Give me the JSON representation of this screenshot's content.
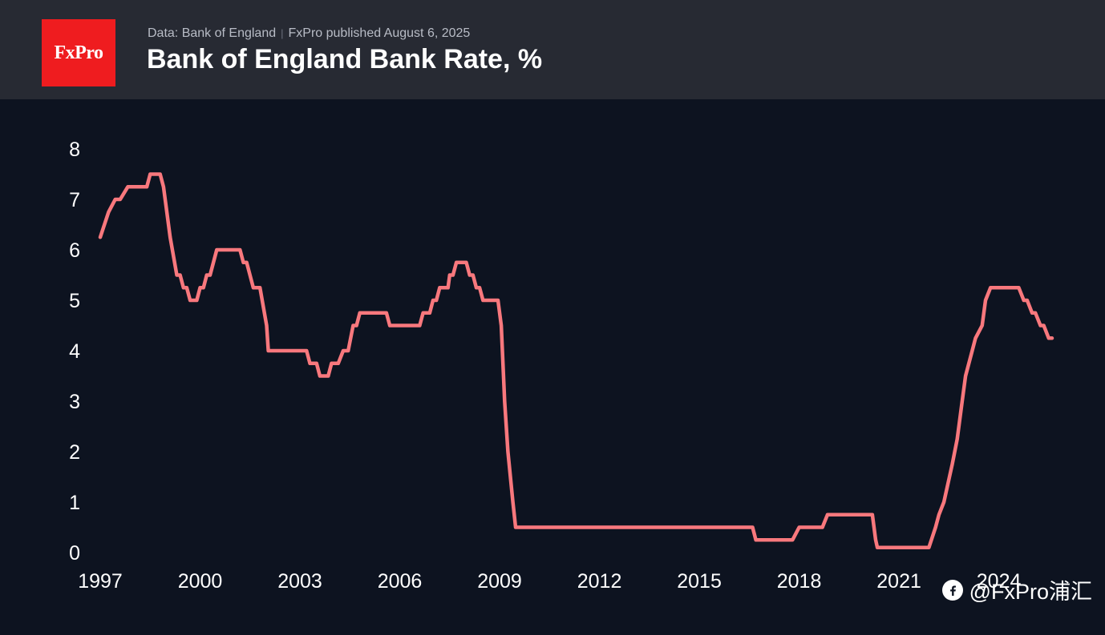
{
  "header": {
    "logo_text": "FxPro",
    "source": "Data: Bank of England",
    "separator": "|",
    "published": "FxPro published August 6, 2025",
    "title": "Bank of England Bank Rate, %"
  },
  "watermark": {
    "text": "@FxPro浦汇"
  },
  "colors": {
    "header_bg": "#272a33",
    "chart_bg": "#0d1320",
    "line": "#f8787d",
    "logo_bg": "#ef1c1f",
    "text": "#ffffff"
  },
  "chart_data": {
    "type": "line",
    "title": "Bank of England Bank Rate, %",
    "xlabel": "",
    "ylabel": "",
    "xlim": [
      1997,
      2025.6
    ],
    "ylim": [
      0,
      8
    ],
    "grid": false,
    "x_ticks": [
      "1997",
      "2000",
      "2003",
      "2006",
      "2009",
      "2012",
      "2015",
      "2018",
      "2021",
      "2024"
    ],
    "y_ticks": [
      "0",
      "1",
      "2",
      "3",
      "4",
      "5",
      "6",
      "7",
      "8"
    ],
    "series": [
      {
        "points": [
          [
            1997.0,
            6.25
          ],
          [
            1997.25,
            6.75
          ],
          [
            1997.45,
            7.0
          ],
          [
            1997.6,
            7.0
          ],
          [
            1997.83,
            7.25
          ],
          [
            1998.4,
            7.25
          ],
          [
            1998.5,
            7.5
          ],
          [
            1998.8,
            7.5
          ],
          [
            1998.9,
            7.25
          ],
          [
            1999.1,
            6.25
          ],
          [
            1999.3,
            5.5
          ],
          [
            1999.4,
            5.5
          ],
          [
            1999.5,
            5.25
          ],
          [
            1999.6,
            5.25
          ],
          [
            1999.7,
            5.0
          ],
          [
            1999.9,
            5.0
          ],
          [
            2000.0,
            5.25
          ],
          [
            2000.1,
            5.25
          ],
          [
            2000.2,
            5.5
          ],
          [
            2000.3,
            5.5
          ],
          [
            2000.5,
            6.0
          ],
          [
            2001.2,
            6.0
          ],
          [
            2001.3,
            5.75
          ],
          [
            2001.4,
            5.75
          ],
          [
            2001.6,
            5.25
          ],
          [
            2001.8,
            5.25
          ],
          [
            2002.0,
            4.5
          ],
          [
            2002.05,
            4.0
          ],
          [
            2003.2,
            4.0
          ],
          [
            2003.3,
            3.75
          ],
          [
            2003.5,
            3.75
          ],
          [
            2003.6,
            3.5
          ],
          [
            2003.85,
            3.5
          ],
          [
            2003.95,
            3.75
          ],
          [
            2004.15,
            3.75
          ],
          [
            2004.3,
            4.0
          ],
          [
            2004.45,
            4.0
          ],
          [
            2004.6,
            4.5
          ],
          [
            2004.7,
            4.5
          ],
          [
            2004.8,
            4.75
          ],
          [
            2005.6,
            4.75
          ],
          [
            2005.7,
            4.5
          ],
          [
            2006.6,
            4.5
          ],
          [
            2006.7,
            4.75
          ],
          [
            2006.9,
            4.75
          ],
          [
            2007.0,
            5.0
          ],
          [
            2007.1,
            5.0
          ],
          [
            2007.2,
            5.25
          ],
          [
            2007.45,
            5.25
          ],
          [
            2007.5,
            5.5
          ],
          [
            2007.6,
            5.5
          ],
          [
            2007.7,
            5.75
          ],
          [
            2008.0,
            5.75
          ],
          [
            2008.1,
            5.5
          ],
          [
            2008.2,
            5.5
          ],
          [
            2008.3,
            5.25
          ],
          [
            2008.4,
            5.25
          ],
          [
            2008.5,
            5.0
          ],
          [
            2008.95,
            5.0
          ],
          [
            2009.05,
            4.5
          ],
          [
            2009.15,
            3.0
          ],
          [
            2009.25,
            2.0
          ],
          [
            2009.4,
            1.0
          ],
          [
            2009.48,
            0.5
          ],
          [
            2016.6,
            0.5
          ],
          [
            2016.7,
            0.25
          ],
          [
            2017.8,
            0.25
          ],
          [
            2018.0,
            0.5
          ],
          [
            2018.7,
            0.5
          ],
          [
            2018.85,
            0.75
          ],
          [
            2020.2,
            0.75
          ],
          [
            2020.3,
            0.25
          ],
          [
            2020.35,
            0.1
          ],
          [
            2021.9,
            0.1
          ],
          [
            2022.1,
            0.5
          ],
          [
            2022.2,
            0.75
          ],
          [
            2022.35,
            1.0
          ],
          [
            2022.6,
            1.75
          ],
          [
            2022.75,
            2.25
          ],
          [
            2022.9,
            3.0
          ],
          [
            2023.0,
            3.5
          ],
          [
            2023.2,
            4.0
          ],
          [
            2023.3,
            4.25
          ],
          [
            2023.5,
            4.5
          ],
          [
            2023.6,
            5.0
          ],
          [
            2023.75,
            5.25
          ],
          [
            2024.6,
            5.25
          ],
          [
            2024.75,
            5.0
          ],
          [
            2024.85,
            5.0
          ],
          [
            2025.0,
            4.75
          ],
          [
            2025.1,
            4.75
          ],
          [
            2025.25,
            4.5
          ],
          [
            2025.35,
            4.5
          ],
          [
            2025.5,
            4.25
          ],
          [
            2025.6,
            4.25
          ]
        ]
      }
    ]
  }
}
